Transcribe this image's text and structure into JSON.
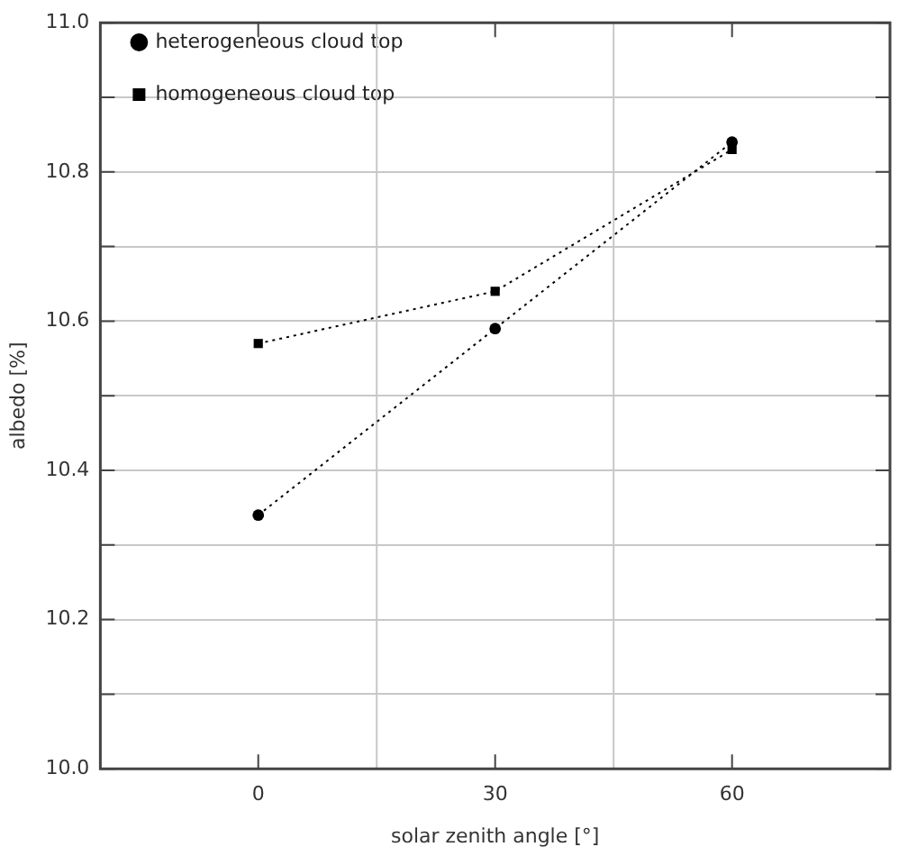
{
  "chart_data": {
    "type": "line",
    "xlabel": "solar zenith angle [°]",
    "ylabel": "albedo [%]",
    "x": [
      0,
      30,
      60
    ],
    "series": [
      {
        "name": "heterogeneous cloud top",
        "color": "#000000",
        "marker": "circle",
        "values": [
          10.34,
          10.59,
          10.84
        ]
      },
      {
        "name": "homogeneous cloud top",
        "color": "#000000",
        "marker": "square",
        "values": [
          10.57,
          10.64,
          10.83
        ]
      }
    ],
    "xlim": [
      -20,
      80
    ],
    "xticks": [
      0,
      30,
      60
    ],
    "ylim": [
      10.0,
      11.0
    ],
    "yticks": [
      {
        "value": 10.0,
        "label": "10.0"
      },
      {
        "value": 10.1,
        "label": null
      },
      {
        "value": 10.2,
        "label": "10.2"
      },
      {
        "value": 10.3,
        "label": null
      },
      {
        "value": 10.4,
        "label": "10.4"
      },
      {
        "value": 10.5,
        "label": null
      },
      {
        "value": 10.6,
        "label": "10.6"
      },
      {
        "value": 10.7,
        "label": null
      },
      {
        "value": 10.8,
        "label": "10.8"
      },
      {
        "value": 10.9,
        "label": null
      },
      {
        "value": 11.0,
        "label": "11.0"
      }
    ],
    "ref_lines": [
      {
        "axis": "x",
        "value": 15,
        "color": "#c8c8c8"
      },
      {
        "axis": "x",
        "value": 45,
        "color": "#c8c8c8"
      }
    ],
    "grid": "y",
    "legend": "top left",
    "line_style": "dotted"
  }
}
